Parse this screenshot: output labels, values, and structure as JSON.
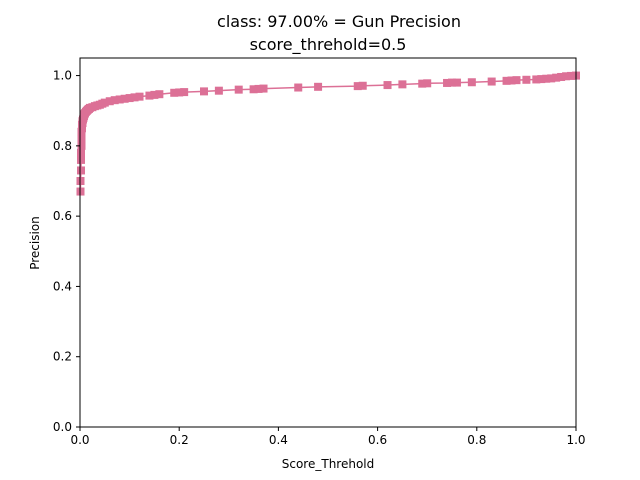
{
  "chart_data": {
    "type": "line",
    "title_line1": "class: 97.00% = Gun Precision",
    "title_line2": "score_threhold=0.5",
    "xlabel": "Score_Threhold",
    "ylabel": "Precision",
    "xlim": [
      0.0,
      1.0
    ],
    "ylim": [
      0.0,
      1.05
    ],
    "xticks": [
      0.0,
      0.2,
      0.4,
      0.6,
      0.8,
      1.0
    ],
    "xtick_labels": [
      "0.0",
      "0.2",
      "0.4",
      "0.6",
      "0.8",
      "1.0"
    ],
    "yticks": [
      0.0,
      0.2,
      0.4,
      0.6,
      0.8,
      1.0
    ],
    "ytick_labels": [
      "0.0",
      "0.2",
      "0.4",
      "0.6",
      "0.8",
      "1.0"
    ],
    "grid": false,
    "marker": "square",
    "color": "#dc7096",
    "series": [
      {
        "x": [
          0.001,
          0.001,
          0.002,
          0.002,
          0.002,
          0.003,
          0.003,
          0.003,
          0.004,
          0.004,
          0.005,
          0.005,
          0.006,
          0.007,
          0.008,
          0.009,
          0.01,
          0.012,
          0.014,
          0.016,
          0.018,
          0.02,
          0.025,
          0.03,
          0.035,
          0.04,
          0.045,
          0.05,
          0.06,
          0.07,
          0.08,
          0.09,
          0.1,
          0.11,
          0.12,
          0.14,
          0.15,
          0.16,
          0.19,
          0.2,
          0.21,
          0.25,
          0.28,
          0.32,
          0.35,
          0.36,
          0.37,
          0.44,
          0.48,
          0.56,
          0.57,
          0.62,
          0.65,
          0.69,
          0.7,
          0.74,
          0.75,
          0.76,
          0.79,
          0.83,
          0.86,
          0.87,
          0.88,
          0.9,
          0.92,
          0.93,
          0.94,
          0.95,
          0.96,
          0.97,
          0.98,
          0.99,
          1.0
        ],
        "y": [
          0.67,
          0.7,
          0.73,
          0.76,
          0.78,
          0.8,
          0.82,
          0.84,
          0.85,
          0.86,
          0.865,
          0.87,
          0.875,
          0.88,
          0.885,
          0.89,
          0.893,
          0.897,
          0.9,
          0.903,
          0.905,
          0.908,
          0.91,
          0.913,
          0.915,
          0.917,
          0.92,
          0.923,
          0.927,
          0.93,
          0.932,
          0.934,
          0.936,
          0.938,
          0.94,
          0.943,
          0.945,
          0.947,
          0.951,
          0.952,
          0.953,
          0.955,
          0.957,
          0.96,
          0.961,
          0.962,
          0.963,
          0.966,
          0.968,
          0.97,
          0.971,
          0.973,
          0.975,
          0.977,
          0.978,
          0.979,
          0.98,
          0.98,
          0.981,
          0.983,
          0.985,
          0.986,
          0.987,
          0.988,
          0.989,
          0.99,
          0.991,
          0.992,
          0.994,
          0.996,
          0.998,
          0.999,
          1.0
        ]
      }
    ]
  }
}
